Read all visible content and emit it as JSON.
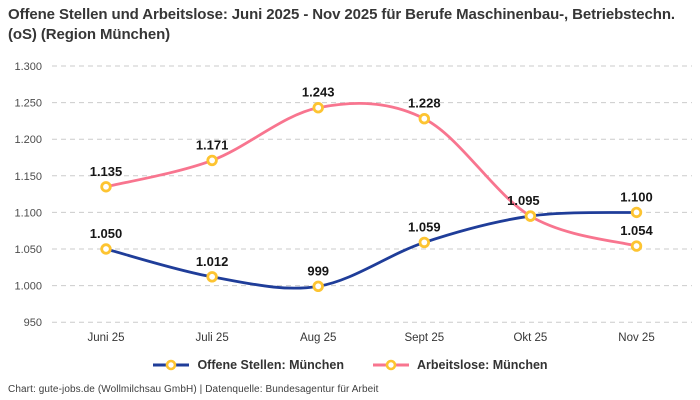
{
  "title": "Offene Stellen und Arbeitslose: Juni 2025 - Nov 2025 für Berufe Maschinenbau-, Betriebstechn.(oS) (Region München)",
  "footer": "Chart: gute-jobs.de (Wollmilchsau GmbH) | Datenquelle: Bundesagentur für Arbeit",
  "colors": {
    "grid": "#cbcbcb",
    "marker_ring": "#fdc431",
    "marker_fill": "#ffffff",
    "offene_stellen": "#1f3d99",
    "arbeitslose": "#f8758f",
    "point_label": "#161616"
  },
  "chart_data": {
    "type": "line",
    "curve": "smooth",
    "grid": "dashed-horizontal",
    "legend_position": "bottom",
    "categories": [
      "Juni 25",
      "Juli 25",
      "Aug 25",
      "Sept 25",
      "Okt 25",
      "Nov 25"
    ],
    "series": [
      {
        "name": "Offene Stellen: München",
        "color": "#1f3d99",
        "values": [
          1050,
          1012,
          999,
          1059,
          1095,
          1100
        ],
        "labels": [
          "1.050",
          "1.012",
          "999",
          "1.059",
          "1.095",
          "1.100"
        ]
      },
      {
        "name": "Arbeitslose: München",
        "color": "#f8758f",
        "values": [
          1135,
          1171,
          1243,
          1228,
          1095,
          1054
        ],
        "labels": [
          "1.135",
          "1.171",
          "1.243",
          "1.228",
          "",
          "1.054"
        ]
      }
    ],
    "y_axis": {
      "ylim": [
        950,
        1300
      ],
      "tick_values": [
        1300,
        1250,
        1200,
        1150,
        1100,
        1050,
        1000,
        950
      ],
      "tick_labels": [
        "1.300",
        "1.250",
        "1.200",
        "1.150",
        "1.100",
        "1.050",
        "1.000",
        "950"
      ]
    }
  }
}
